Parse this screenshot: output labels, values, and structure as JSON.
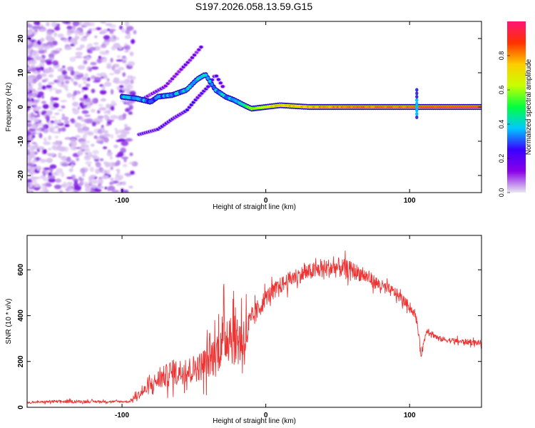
{
  "title": "S197.2026.058.13.59.G15",
  "chart_data": [
    {
      "type": "heatmap",
      "name": "spectrogram",
      "title": "S197.2026.058.13.59.G15",
      "xlabel": "Height of straight line (km)",
      "ylabel": "Frequency (Hz)",
      "xlim": [
        -166,
        150
      ],
      "ylim": [
        -25,
        25
      ],
      "xticks": [
        -100,
        0,
        100
      ],
      "xtick_labels": [
        "-100",
        "0",
        "100"
      ],
      "yticks": [
        -20,
        -10,
        0,
        10,
        20
      ],
      "ytick_labels": [
        "-20",
        "-10",
        "0",
        "10",
        "20"
      ],
      "colorbar": {
        "label": "Normalized spectral amplitude",
        "range": [
          0,
          1
        ],
        "ticks": [
          0.0,
          0.2,
          0.4,
          0.6,
          0.8
        ],
        "tick_labels": [
          "0.0",
          "0.2",
          "0.4",
          "0.6",
          "0.8"
        ],
        "colors": [
          "#e8e8f0",
          "#8a00e8",
          "#3a00ff",
          "#00c8ff",
          "#00ff40",
          "#c8ff00",
          "#ffcc00",
          "#ff3000",
          "#ff1478"
        ]
      },
      "main_trace": [
        {
          "x": -100,
          "y": 3.0,
          "amp": 0.3
        },
        {
          "x": -90,
          "y": 2.5,
          "amp": 0.3
        },
        {
          "x": -80,
          "y": 1.5,
          "amp": 0.2
        },
        {
          "x": -75,
          "y": 3.0,
          "amp": 0.25
        },
        {
          "x": -65,
          "y": 3.5,
          "amp": 0.25
        },
        {
          "x": -55,
          "y": 5.0,
          "amp": 0.3
        },
        {
          "x": -48,
          "y": 8.0,
          "amp": 0.35
        },
        {
          "x": -42,
          "y": 9.5,
          "amp": 0.35
        },
        {
          "x": -35,
          "y": 5.0,
          "amp": 0.3
        },
        {
          "x": -28,
          "y": 3.0,
          "amp": 0.3
        },
        {
          "x": -22,
          "y": 2.0,
          "amp": 0.35
        },
        {
          "x": -15,
          "y": 0.5,
          "amp": 0.45
        },
        {
          "x": -10,
          "y": -0.5,
          "amp": 0.6
        },
        {
          "x": 0,
          "y": 0.0,
          "amp": 0.7
        },
        {
          "x": 10,
          "y": 0.5,
          "amp": 0.75
        },
        {
          "x": 30,
          "y": 0.0,
          "amp": 0.8
        },
        {
          "x": 60,
          "y": 0.0,
          "amp": 0.85
        },
        {
          "x": 100,
          "y": 0.0,
          "amp": 0.85
        },
        {
          "x": 110,
          "y": 0.0,
          "amp": 0.9
        },
        {
          "x": 150,
          "y": 0.0,
          "amp": 0.95
        }
      ],
      "secondary_trace": [
        {
          "x": -88,
          "y": -8.0
        },
        {
          "x": -75,
          "y": -6.5
        },
        {
          "x": -65,
          "y": -3.5
        },
        {
          "x": -55,
          "y": -1.0
        },
        {
          "x": -48,
          "y": 2.5
        },
        {
          "x": -40,
          "y": 6.0
        },
        {
          "x": -35,
          "y": 9.5
        },
        {
          "x": -30,
          "y": 6.0
        }
      ],
      "upper_branch": [
        {
          "x": -85,
          "y": 2.5
        },
        {
          "x": -70,
          "y": 6.0
        },
        {
          "x": -60,
          "y": 10.5
        },
        {
          "x": -52,
          "y": 14.0
        },
        {
          "x": -45,
          "y": 17.5
        }
      ]
    },
    {
      "type": "line",
      "name": "snr",
      "xlabel": "Height of straight line (km)",
      "ylabel": "SNR (10 * v/v)",
      "xlim": [
        -166,
        150
      ],
      "ylim": [
        0,
        750
      ],
      "xticks": [
        -100,
        0,
        100
      ],
      "xtick_labels": [
        "-100",
        "0",
        "100"
      ],
      "yticks": [
        0,
        200,
        400,
        600
      ],
      "ytick_labels": [
        "0",
        "200",
        "400",
        "600"
      ],
      "color": "#ee3333",
      "series": [
        {
          "name": "SNR",
          "x": [
            -166,
            -150,
            -130,
            -110,
            -95,
            -85,
            -75,
            -65,
            -55,
            -45,
            -35,
            -30,
            -25,
            -20,
            -15,
            -10,
            -5,
            0,
            10,
            20,
            30,
            40,
            50,
            60,
            70,
            80,
            90,
            100,
            103,
            105,
            108,
            112,
            120,
            130,
            140,
            150
          ],
          "y": [
            20,
            25,
            25,
            25,
            25,
            70,
            120,
            150,
            160,
            180,
            230,
            300,
            330,
            300,
            300,
            380,
            430,
            480,
            530,
            570,
            590,
            605,
            610,
            600,
            570,
            530,
            500,
            440,
            410,
            380,
            230,
            340,
            300,
            290,
            285,
            280
          ],
          "noise": [
            4,
            8,
            8,
            6,
            6,
            30,
            55,
            70,
            70,
            80,
            120,
            150,
            170,
            160,
            160,
            60,
            60,
            45,
            45,
            45,
            45,
            50,
            55,
            45,
            40,
            35,
            30,
            25,
            20,
            20,
            20,
            20,
            15,
            15,
            15,
            15
          ]
        }
      ]
    }
  ]
}
